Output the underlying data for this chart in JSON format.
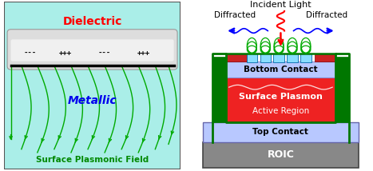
{
  "fig_width": 4.67,
  "fig_height": 2.14,
  "dpi": 100,
  "left_bg": "#aaeee8",
  "left_panel": {
    "dielectric_label": "Dielectric",
    "dielectric_color": "#ff0000",
    "metallic_label": "Metallic",
    "metallic_color": "#0000ee",
    "bottom_label": "Surface Plasmonic Field",
    "bottom_color": "#008800",
    "arrow_color": "#00aa00"
  },
  "right_panel": {
    "incident_label": "Incident Light",
    "diffracted_label": "Diffracted",
    "bottom_contact_label": "Bottom Contact",
    "surface_plasmon_label": "Surface Plasmon",
    "active_region_label": "Active Region",
    "top_contact_label": "Top Contact",
    "roic_label": "ROIC",
    "roic_color": "#888888",
    "top_contact_color": "#b0b8ff",
    "active_region_color": "#ee2222",
    "bottom_contact_color": "#b0b8ff",
    "spc_color": "#cc2222",
    "green_border": "#007700"
  }
}
